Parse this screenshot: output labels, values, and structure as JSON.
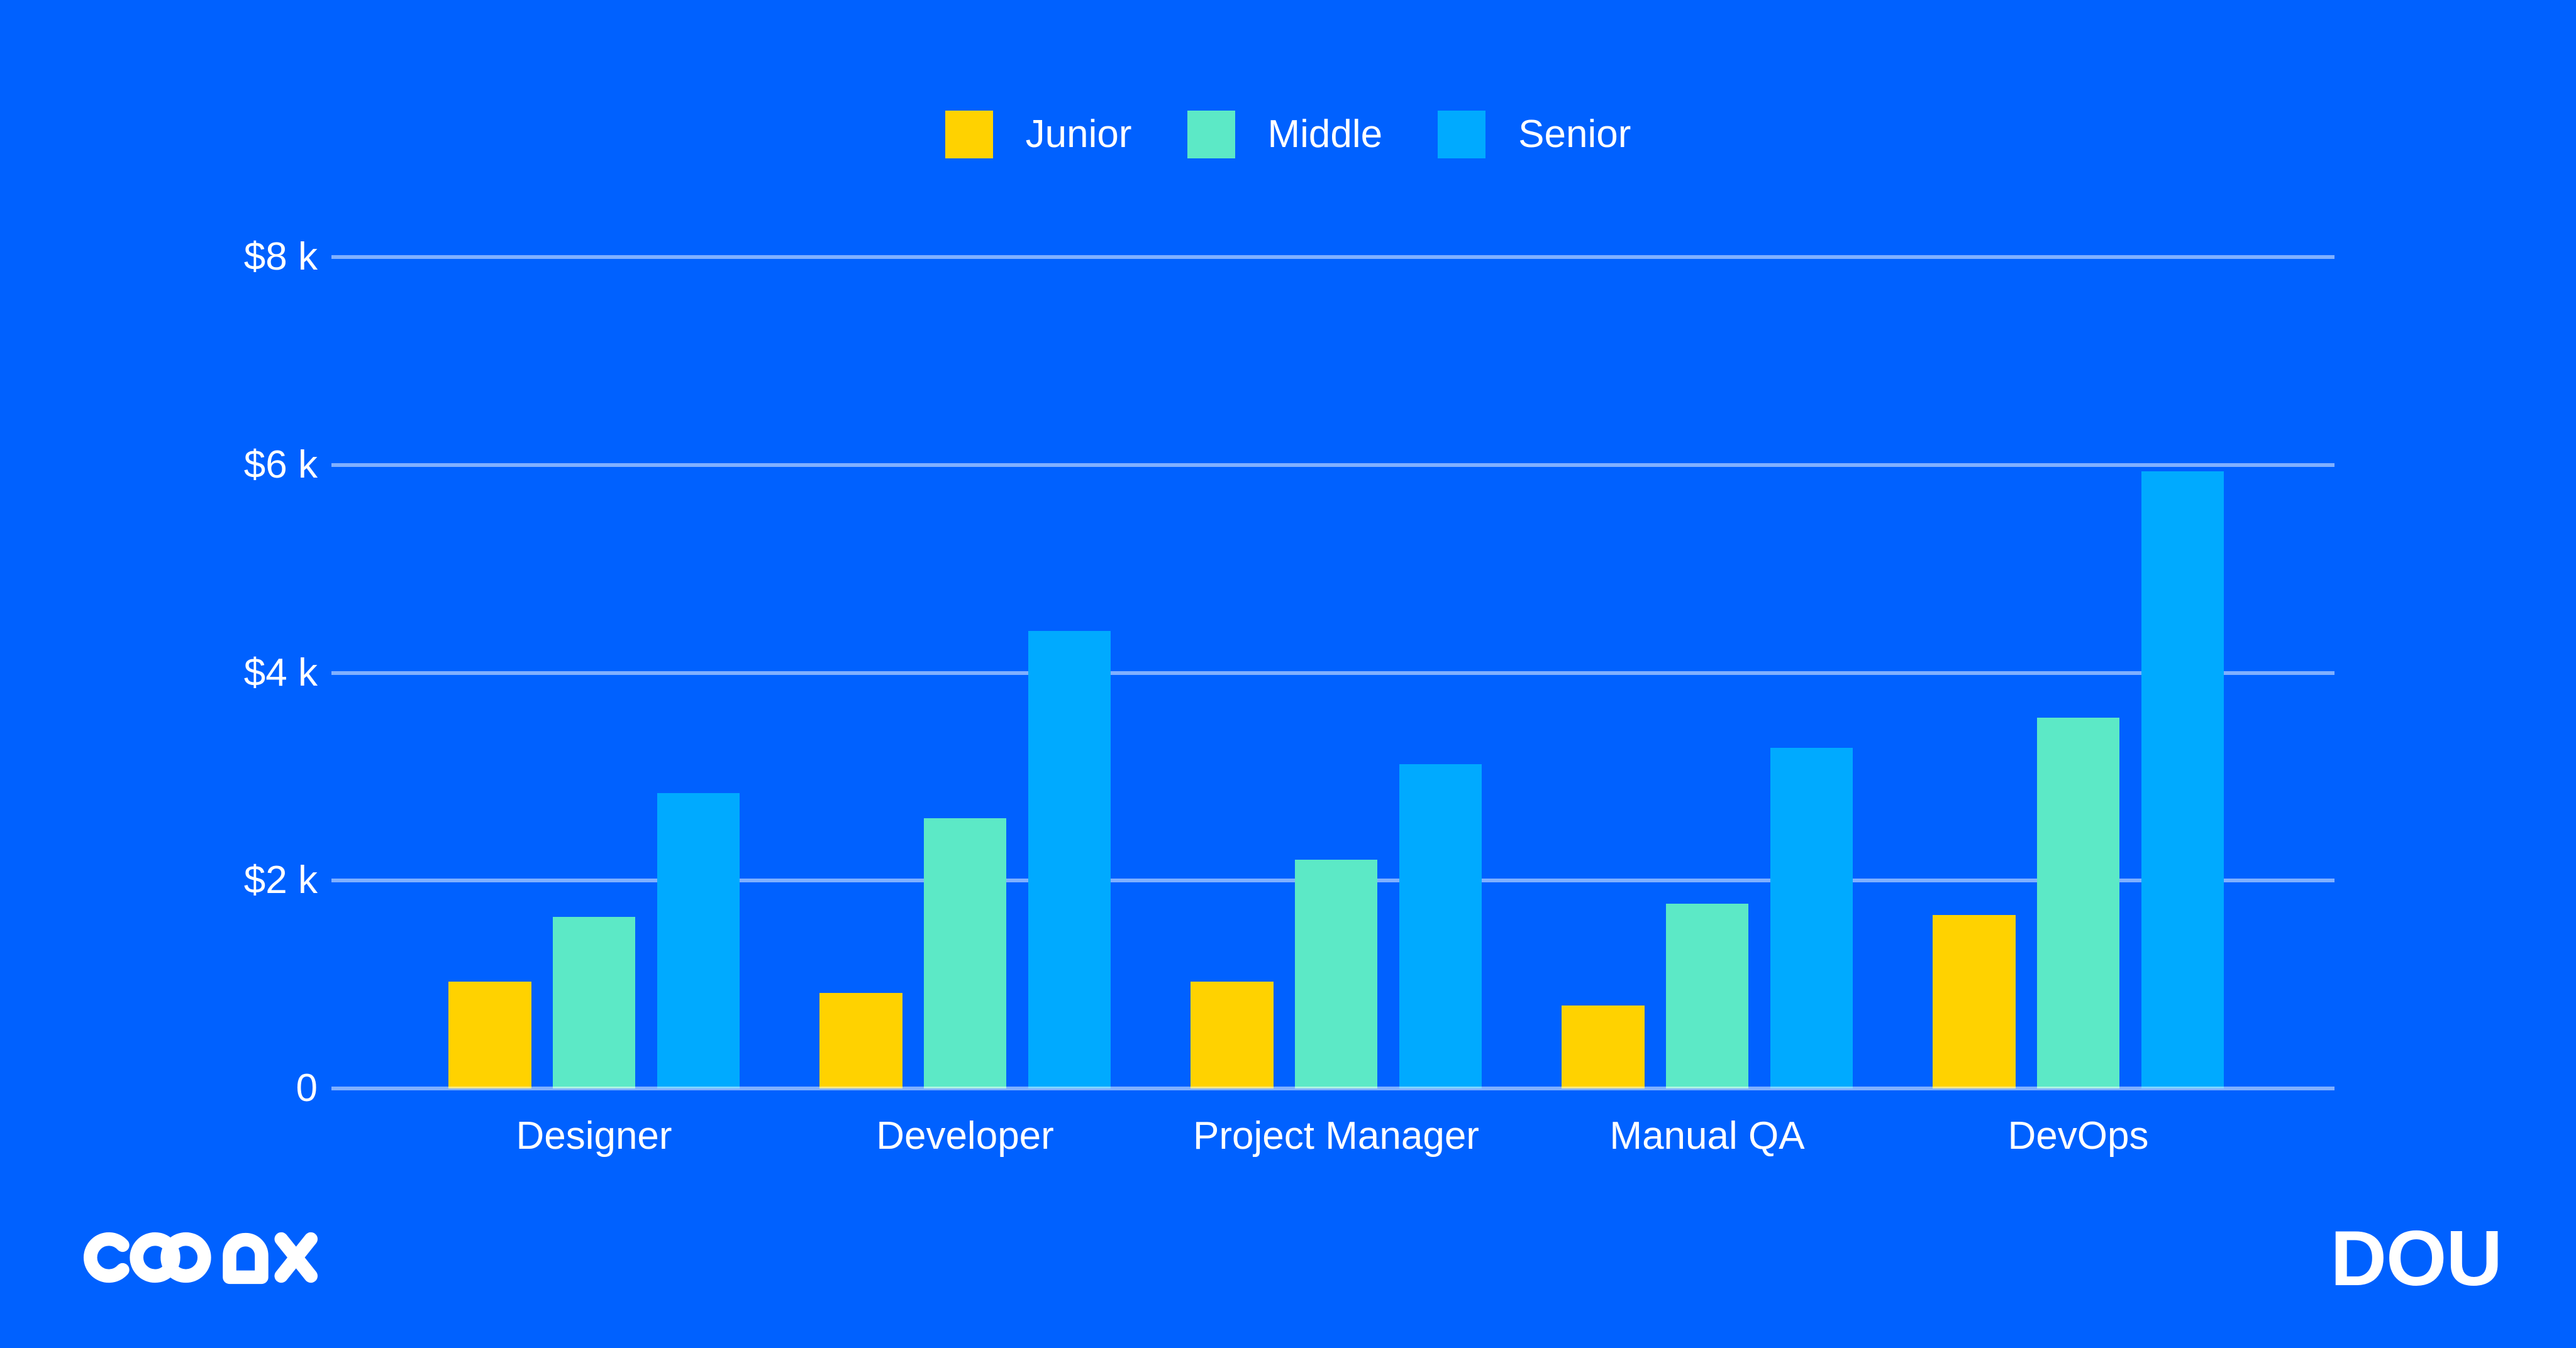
{
  "page": {
    "background": "#0061FF",
    "text_color": "#FFFFFF",
    "gridline_color": "rgba(255,255,255,0.5)"
  },
  "chart_data": {
    "type": "bar",
    "title": "",
    "categories": [
      "Designer",
      "Developer",
      "Project Manager",
      "Manual QA",
      "DevOps"
    ],
    "series": [
      {
        "name": "Junior",
        "color": "#FFD200",
        "values": [
          1.03,
          0.92,
          1.03,
          0.8,
          1.67
        ]
      },
      {
        "name": "Middle",
        "color": "#5CE9C6",
        "values": [
          1.65,
          2.6,
          2.2,
          1.78,
          3.57
        ]
      },
      {
        "name": "Senior",
        "color": "#00AAFF",
        "values": [
          2.84,
          4.4,
          3.12,
          3.28,
          5.94
        ]
      }
    ],
    "y_ticks": [
      {
        "value": 8,
        "label": "$8 k"
      },
      {
        "value": 6,
        "label": "$6 k"
      },
      {
        "value": 4,
        "label": "$4 k"
      },
      {
        "value": 2,
        "label": "$2 k"
      },
      {
        "value": 0,
        "label": "0"
      }
    ],
    "ylim": [
      0,
      8
    ],
    "grid": "horizontal",
    "legend_position": "top-center"
  },
  "footer": {
    "coax_logo": "COAX",
    "dou_logo": "DOU"
  }
}
